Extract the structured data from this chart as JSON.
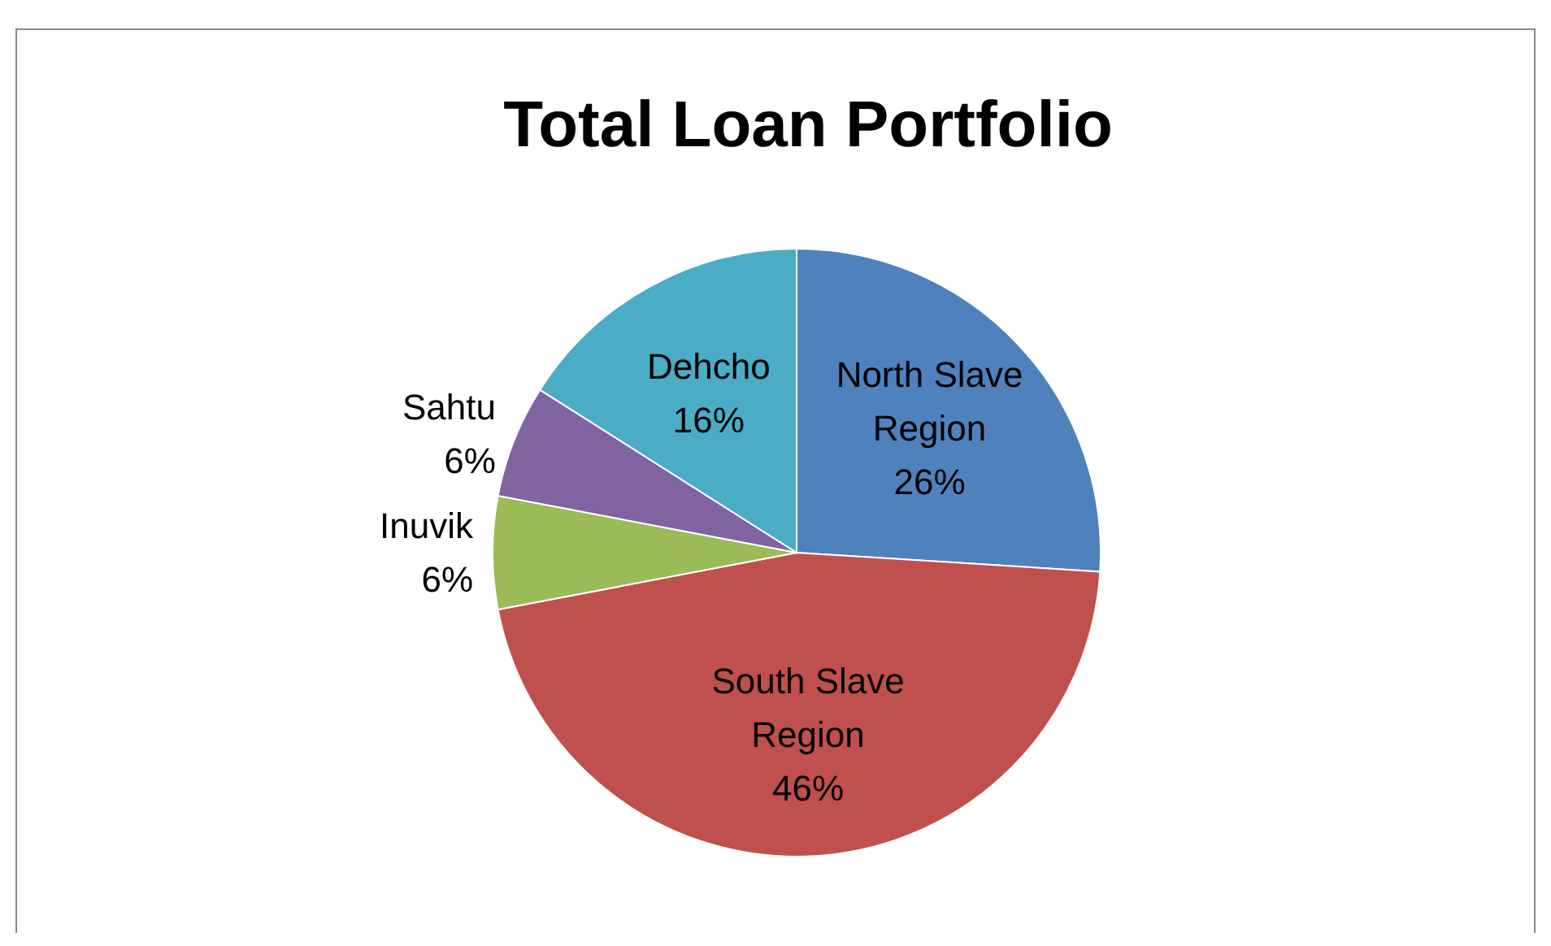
{
  "chart_data": {
    "type": "pie",
    "title": "Total Loan Portfolio",
    "categories": [
      "North Slave Region",
      "South Slave Region",
      "Inuvik",
      "Sahtu",
      "Dehcho"
    ],
    "values": [
      26,
      46,
      6,
      6,
      16
    ],
    "value_labels": [
      "26%",
      "46%",
      "6%",
      "6%",
      "16%"
    ],
    "colors": [
      "#4f81bd",
      "#c0504d",
      "#9bbb59",
      "#8064a2",
      "#4bacc6"
    ]
  }
}
